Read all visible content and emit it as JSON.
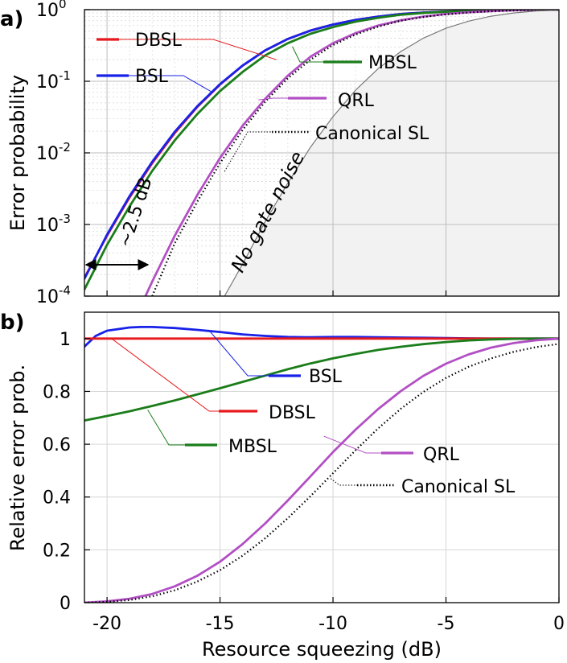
{
  "chart_data": [
    {
      "panel_label": "a)",
      "type": "line",
      "xlabel": "",
      "ylabel": "Error probability",
      "xlim": [
        -21,
        0
      ],
      "ylim": [
        0.0001,
        1
      ],
      "yscale": "log",
      "x_ticks": [
        -20,
        -15,
        -10,
        -5,
        0
      ],
      "y_ticks": [
        {
          "value": 0.0001,
          "mantissa": "10",
          "exp": "-4"
        },
        {
          "value": 0.001,
          "mantissa": "10",
          "exp": "-3"
        },
        {
          "value": 0.01,
          "mantissa": "10",
          "exp": "-2"
        },
        {
          "value": 0.1,
          "mantissa": "10",
          "exp": "-1"
        },
        {
          "value": 1,
          "mantissa": "10",
          "exp": "0"
        }
      ],
      "grid": true,
      "shaded_region": {
        "label": "No gate noise"
      },
      "annotation": {
        "text": "~2.5 dB",
        "from_x": -20.8,
        "to_x": -18.3,
        "y": 0.00018
      },
      "series": [
        {
          "name": "DBSL",
          "color": "#e8191c",
          "x": [
            -21,
            -20,
            -19,
            -18,
            -17,
            -16,
            -15,
            -14,
            -13,
            -12,
            -11,
            -10,
            -9,
            -8,
            -7,
            -6,
            -5,
            -4,
            -3,
            -2,
            -1,
            0
          ],
          "values": [
            0.00018,
            0.0007,
            0.0024,
            0.0072,
            0.019,
            0.044,
            0.09,
            0.165,
            0.27,
            0.39,
            0.51,
            0.62,
            0.72,
            0.8,
            0.87,
            0.91,
            0.94,
            0.965,
            0.98,
            0.99,
            0.996,
            1.0
          ]
        },
        {
          "name": "BSL",
          "color": "#1822e8",
          "x": [
            -21,
            -20,
            -19,
            -18,
            -17,
            -16,
            -15,
            -14,
            -13,
            -12,
            -11,
            -10,
            -9,
            -8,
            -7,
            -6,
            -5,
            -4,
            -3,
            -2,
            -1,
            0
          ],
          "values": [
            0.000175,
            0.00072,
            0.0025,
            0.0075,
            0.0198,
            0.045,
            0.091,
            0.166,
            0.27,
            0.39,
            0.51,
            0.62,
            0.72,
            0.8,
            0.87,
            0.91,
            0.94,
            0.965,
            0.98,
            0.99,
            0.996,
            1.0
          ]
        },
        {
          "name": "MBSL",
          "color": "#1a7d1a",
          "x": [
            -21,
            -20,
            -19,
            -18,
            -17,
            -16,
            -15,
            -14,
            -13,
            -12,
            -11,
            -10,
            -9,
            -8,
            -7,
            -6,
            -5,
            -4,
            -3,
            -2,
            -1,
            0
          ],
          "values": [
            0.000124,
            0.00052,
            0.0018,
            0.0056,
            0.015,
            0.035,
            0.073,
            0.135,
            0.23,
            0.34,
            0.46,
            0.57,
            0.68,
            0.77,
            0.85,
            0.9,
            0.935,
            0.96,
            0.978,
            0.99,
            0.996,
            1.0
          ]
        },
        {
          "name": "QRL",
          "color": "#b24fc4",
          "x": [
            -18.3,
            -18,
            -17,
            -16,
            -15,
            -14,
            -13,
            -12,
            -11,
            -10,
            -9,
            -8,
            -7,
            -6,
            -5,
            -4,
            -3,
            -2,
            -1,
            0
          ],
          "values": [
            0.0001,
            0.00016,
            0.0007,
            0.0026,
            0.0085,
            0.024,
            0.057,
            0.12,
            0.22,
            0.34,
            0.47,
            0.6,
            0.71,
            0.8,
            0.87,
            0.92,
            0.955,
            0.978,
            0.992,
            1.0
          ]
        },
        {
          "name": "Canonical SL",
          "color": "#000000",
          "dash": "dotted",
          "x": [
            -18.0,
            -17,
            -16,
            -15,
            -14,
            -13,
            -12,
            -11,
            -10,
            -9,
            -8,
            -7,
            -6,
            -5,
            -4,
            -3,
            -2,
            -1,
            0
          ],
          "values": [
            0.0001,
            0.00055,
            0.0021,
            0.0072,
            0.021,
            0.052,
            0.11,
            0.2,
            0.32,
            0.45,
            0.58,
            0.7,
            0.79,
            0.86,
            0.91,
            0.95,
            0.975,
            0.99,
            0.997
          ]
        },
        {
          "name": "",
          "color": "#7a7a7a",
          "role": "no-gate-noise boundary",
          "x": [
            -14.8,
            -14,
            -13,
            -12,
            -11,
            -10,
            -9,
            -8,
            -7,
            -6,
            -5,
            -4,
            -3,
            -2,
            -1,
            0
          ],
          "values": [
            0.0001,
            0.00028,
            0.0011,
            0.0038,
            0.012,
            0.032,
            0.075,
            0.15,
            0.26,
            0.4,
            0.55,
            0.69,
            0.81,
            0.9,
            0.96,
            0.99
          ]
        }
      ]
    },
    {
      "panel_label": "b)",
      "type": "line",
      "xlabel": "Resource squeezing (dB)",
      "ylabel": "Relative error prob.",
      "xlim": [
        -21,
        0
      ],
      "ylim": [
        0,
        1.1
      ],
      "x_ticks": [
        -20,
        -15,
        -10,
        -5,
        0
      ],
      "y_ticks": [
        0,
        0.2,
        0.4,
        0.6,
        0.8,
        1
      ],
      "grid": true,
      "series": [
        {
          "name": "BSL",
          "color": "#1822e8",
          "x": [
            -21,
            -20.5,
            -20,
            -19,
            -18.5,
            -18,
            -17,
            -16,
            -15,
            -14,
            -13,
            -12,
            -11,
            -10,
            -9,
            -8,
            -7,
            -6,
            -5,
            -4,
            -3,
            -2,
            -1,
            0
          ],
          "values": [
            0.97,
            1.01,
            1.03,
            1.042,
            1.044,
            1.044,
            1.04,
            1.033,
            1.025,
            1.016,
            1.01,
            1.006,
            1.005,
            1.006,
            1.006,
            1.005,
            1.004,
            1.003,
            1.002,
            1.001,
            1.0,
            1.0,
            1.0,
            1.0
          ]
        },
        {
          "name": "DBSL",
          "color": "#e8191c",
          "x": [
            -21,
            -15,
            -10,
            -5,
            0
          ],
          "values": [
            1.0,
            1.0,
            1.0,
            1.0,
            1.0
          ]
        },
        {
          "name": "MBSL",
          "color": "#1a7d1a",
          "x": [
            -21,
            -20,
            -19,
            -18,
            -17,
            -16,
            -15,
            -14,
            -13,
            -12,
            -11,
            -10,
            -9,
            -8,
            -7,
            -6,
            -5,
            -4,
            -3,
            -2,
            -1,
            0
          ],
          "values": [
            0.69,
            0.707,
            0.725,
            0.745,
            0.766,
            0.789,
            0.812,
            0.836,
            0.86,
            0.884,
            0.906,
            0.925,
            0.942,
            0.957,
            0.969,
            0.979,
            0.987,
            0.993,
            0.997,
            0.999,
            1.0,
            1.0
          ]
        },
        {
          "name": "QRL",
          "color": "#b24fc4",
          "x": [
            -21,
            -20,
            -19,
            -18,
            -17,
            -16,
            -15,
            -14,
            -13,
            -12,
            -11,
            -10,
            -9,
            -8,
            -7,
            -6,
            -5,
            -4,
            -3,
            -2,
            -1,
            0
          ],
          "values": [
            0.0,
            0.005,
            0.015,
            0.033,
            0.062,
            0.102,
            0.155,
            0.222,
            0.3,
            0.387,
            0.478,
            0.57,
            0.655,
            0.733,
            0.801,
            0.859,
            0.905,
            0.94,
            0.966,
            0.983,
            0.994,
            1.0
          ]
        },
        {
          "name": "Canonical SL",
          "color": "#000000",
          "dash": "dotted",
          "x": [
            -21,
            -20,
            -19,
            -18,
            -17,
            -16,
            -15,
            -14,
            -13,
            -12,
            -11,
            -10,
            -9,
            -8,
            -7,
            -6,
            -5,
            -4,
            -3,
            -2,
            -1,
            0
          ],
          "values": [
            0.0,
            0.003,
            0.01,
            0.024,
            0.047,
            0.08,
            0.123,
            0.178,
            0.244,
            0.32,
            0.403,
            0.49,
            0.577,
            0.66,
            0.734,
            0.798,
            0.851,
            0.893,
            0.925,
            0.95,
            0.968,
            0.98
          ]
        }
      ]
    }
  ]
}
